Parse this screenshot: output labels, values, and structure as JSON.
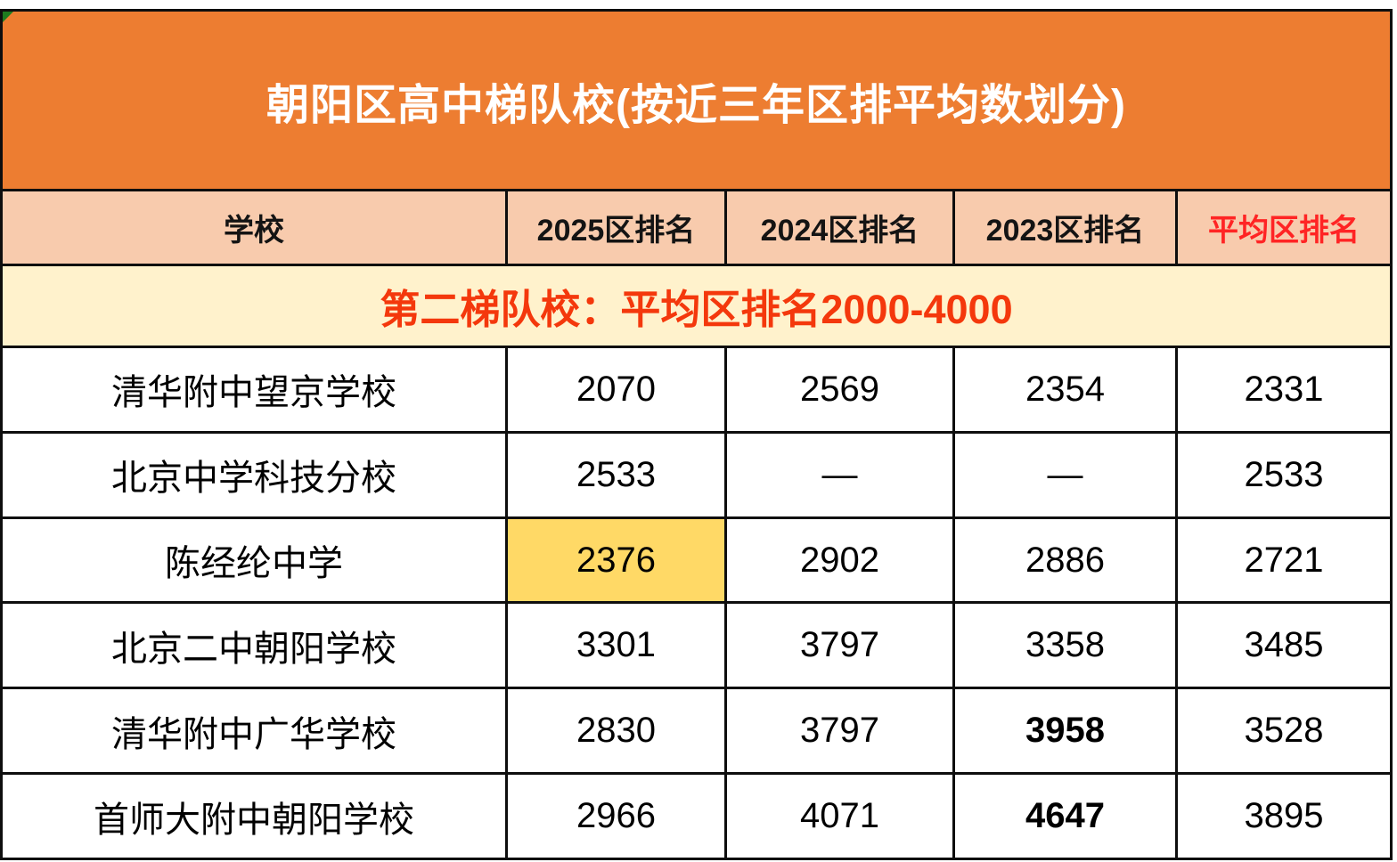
{
  "table": {
    "title": "朝阳区高中梯队校(按近三年区排平均数划分)",
    "columns": [
      "学校",
      "2025区排名",
      "2024区排名",
      "2023区排名",
      "平均区排名"
    ],
    "tier_banner": "第二梯队校：平均区排名2000-4000",
    "rows": [
      {
        "school": "清华附中望京学校",
        "r2025": "2070",
        "r2024": "2569",
        "r2023": "2354",
        "avg": "2331"
      },
      {
        "school": "北京中学科技分校",
        "r2025": "2533",
        "r2024": "—",
        "r2023": "—",
        "avg": "2533"
      },
      {
        "school": "陈经纶中学",
        "r2025": "2376",
        "r2024": "2902",
        "r2023": "2886",
        "avg": "2721"
      },
      {
        "school": "北京二中朝阳学校",
        "r2025": "3301",
        "r2024": "3797",
        "r2023": "3358",
        "avg": "3485"
      },
      {
        "school": "清华附中广华学校",
        "r2025": "2830",
        "r2024": "3797",
        "r2023": "3958",
        "avg": "3528"
      },
      {
        "school": "首师大附中朝阳学校",
        "r2025": "2966",
        "r2024": "4071",
        "r2023": "4647",
        "avg": "3895"
      }
    ],
    "colors": {
      "title_bg": "#ED7D31",
      "title_text": "#FFFFFF",
      "header_bg": "#F8CBAD",
      "header_accent_text": "#FF2424",
      "banner_bg": "#FFF2CC",
      "banner_text": "#F4380C",
      "highlight_cell_bg": "#FFD966",
      "border": "#0E0E0E",
      "error_indicator": "#1E7B1F"
    }
  },
  "chart_data": {
    "type": "table",
    "title": "朝阳区高中梯队校(按近三年区排平均数划分)",
    "section_label": "第二梯队校：平均区排名2000-4000",
    "columns": [
      "学校",
      "2025区排名",
      "2024区排名",
      "2023区排名",
      "平均区排名"
    ],
    "rows": [
      [
        "清华附中望京学校",
        2070,
        2569,
        2354,
        2331
      ],
      [
        "北京中学科技分校",
        2533,
        null,
        null,
        2533
      ],
      [
        "陈经纶中学",
        2376,
        2902,
        2886,
        2721
      ],
      [
        "北京二中朝阳学校",
        3301,
        3797,
        3358,
        3485
      ],
      [
        "清华附中广华学校",
        2830,
        3797,
        3958,
        3528
      ],
      [
        "首师大附中朝阳学校",
        2966,
        4071,
        4647,
        3895
      ]
    ],
    "notes": {
      "highlighted_cell": "陈经纶中学 2025区排名 2376 (yellow fill)",
      "bold_cells": [
        "清华附中广华学校 2023区排名 3958",
        "首师大附中朝阳学校 2023区排名 4647"
      ],
      "missing_values_shown_as": "—"
    }
  }
}
